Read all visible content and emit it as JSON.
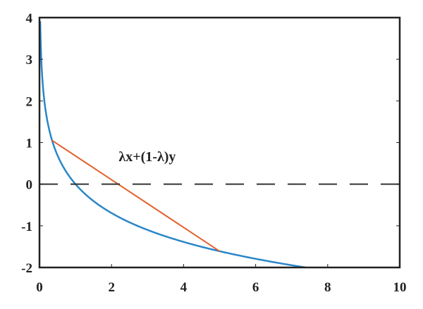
{
  "chart_data": {
    "type": "line",
    "title": "",
    "xlabel": "",
    "ylabel": "",
    "xlim": [
      0,
      10
    ],
    "ylim": [
      -2,
      4
    ],
    "x_ticks": [
      0,
      2,
      4,
      6,
      8,
      10
    ],
    "y_ticks": [
      4,
      3,
      2,
      1,
      0,
      -1,
      -2
    ],
    "x_tick_labels": [
      "0",
      "2",
      "4",
      "6",
      "8",
      "10"
    ],
    "y_tick_labels": [
      "4",
      "3",
      "2",
      "1",
      "0",
      "-1",
      "-2"
    ],
    "grid": false,
    "series": [
      {
        "kind": "curve",
        "color": "#2a86c8",
        "x": [
          0.02,
          0.05,
          0.1,
          0.2,
          0.35,
          0.5,
          0.75,
          1,
          1.5,
          2,
          3,
          4,
          5,
          6,
          7,
          7.39
        ],
        "y": [
          3.91,
          3.0,
          2.3,
          1.61,
          1.05,
          0.69,
          0.29,
          0,
          -0.41,
          -0.69,
          -1.1,
          -1.39,
          -1.61,
          -1.79,
          -1.95,
          -2.0
        ]
      },
      {
        "kind": "chord",
        "color": "#e0622e",
        "x": [
          0.35,
          5
        ],
        "y": [
          1.05,
          -1.61
        ]
      },
      {
        "kind": "reference-line",
        "style": "dashed",
        "color": "#333333",
        "y": 0
      }
    ],
    "annotations": [
      {
        "text": "λx+(1-λ)y",
        "x": 2.2,
        "y": 0.55
      }
    ]
  }
}
